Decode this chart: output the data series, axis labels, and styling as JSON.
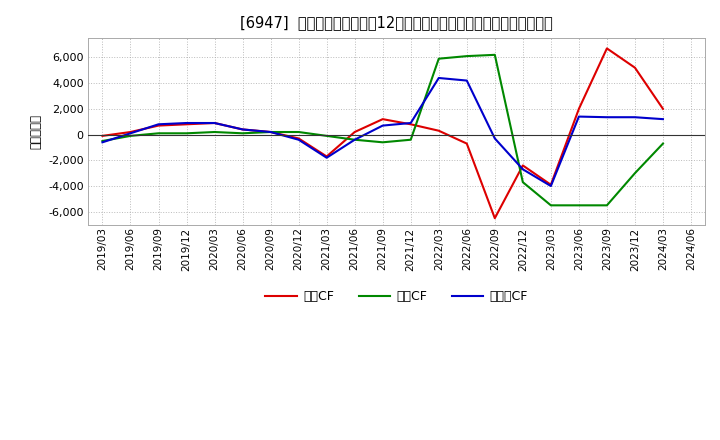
{
  "title": "[6947]  キャッシュフローの12か月移動合計の対前年同期増減額の推移",
  "ylabel": "（百万円）",
  "background_color": "#ffffff",
  "plot_bg_color": "#ffffff",
  "grid_color": "#aaaaaa",
  "x_labels": [
    "2019/03",
    "2019/06",
    "2019/09",
    "2019/12",
    "2020/03",
    "2020/06",
    "2020/09",
    "2020/12",
    "2021/03",
    "2021/06",
    "2021/09",
    "2021/12",
    "2022/03",
    "2022/06",
    "2022/09",
    "2022/12",
    "2023/03",
    "2023/06",
    "2023/09",
    "2023/12",
    "2024/03",
    "2024/06"
  ],
  "営業CF": [
    -100,
    200,
    700,
    800,
    900,
    400,
    200,
    -300,
    -1700,
    200,
    1200,
    800,
    300,
    -700,
    -6500,
    -2400,
    -3900,
    2000,
    6700,
    5200,
    2000,
    null
  ],
  "投資CF": [
    -500,
    -100,
    100,
    100,
    200,
    100,
    200,
    200,
    -100,
    -400,
    -600,
    -400,
    5900,
    6100,
    6200,
    -3700,
    -5500,
    -5500,
    -5500,
    -3000,
    -700,
    null
  ],
  "フリーCF": [
    -600,
    100,
    800,
    900,
    900,
    400,
    200,
    -400,
    -1800,
    -400,
    700,
    900,
    4400,
    4200,
    -300,
    -2700,
    -4000,
    1400,
    1350,
    1350,
    1200,
    null
  ],
  "line_colors": {
    "営業CF": "#dd0000",
    "投資CF": "#008800",
    "フリーCF": "#0000cc"
  },
  "ylim": [
    -7000,
    7500
  ],
  "yticks": [
    -6000,
    -4000,
    -2000,
    0,
    2000,
    4000,
    6000
  ],
  "legend_labels": [
    "営業CF",
    "投資CF",
    "フリーCF"
  ]
}
